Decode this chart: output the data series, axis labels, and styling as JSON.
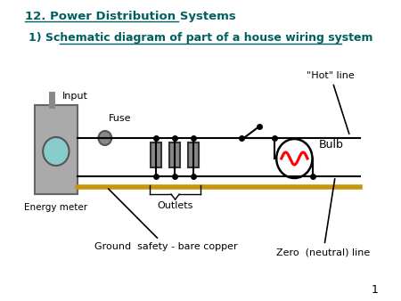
{
  "title1": "12. Power Distribution Systems",
  "title2": "1) Schematic diagram of part of a house wiring system",
  "title1_color": "#006060",
  "title2_color": "#006060",
  "bg_color": "#ffffff",
  "page_number": "1",
  "labels": {
    "input": "Input",
    "fuse": "Fuse",
    "energy_meter": "Energy meter",
    "outlets": "Outlets",
    "ground": "Ground  safety - bare copper",
    "hot_line": "\"Hot\" line",
    "bulb": "Bulb",
    "zero_line": "Zero  (neutral) line"
  }
}
